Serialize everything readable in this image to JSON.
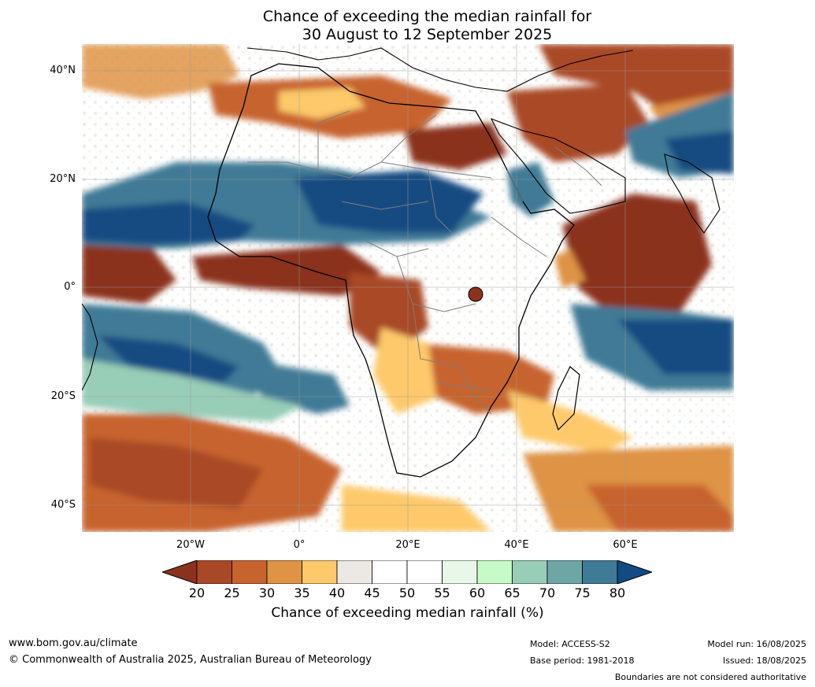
{
  "title": {
    "line1": "Chance of exceeding the median rainfall for",
    "line2": "30 August to 12 September 2025"
  },
  "map": {
    "lat_labels": [
      "40°N",
      "20°N",
      "0°",
      "20°S",
      "40°S"
    ],
    "lon_labels": [
      "20°W",
      "0°",
      "20°E",
      "40°E",
      "60°E"
    ]
  },
  "colorbar": {
    "ticks": [
      "20",
      "25",
      "30",
      "35",
      "40",
      "45",
      "50",
      "55",
      "60",
      "65",
      "70",
      "75",
      "80"
    ],
    "label": "Chance of exceeding median rainfall (%)",
    "colors": [
      "#8b321e",
      "#a94826",
      "#c7642e",
      "#de9345",
      "#fdc96b",
      "#ece9e4",
      "#ffffff",
      "#ffffff",
      "#e9f7e9",
      "#c6fbc8",
      "#98cdb8",
      "#6ea6a6",
      "#3f7a96",
      "#124b82"
    ]
  },
  "footer": {
    "website": "www.bom.gov.au/climate",
    "copyright": "© Commonwealth of Australia 2025, Australian Bureau of Meteorology",
    "model": "Model: ACCESS-S2",
    "base_period": "Base period: 1981-2018",
    "model_run": "Model run: 16/08/2025",
    "issued": "Issued: 18/08/2025",
    "disclaimer": "Boundaries are not considered authoritative"
  }
}
